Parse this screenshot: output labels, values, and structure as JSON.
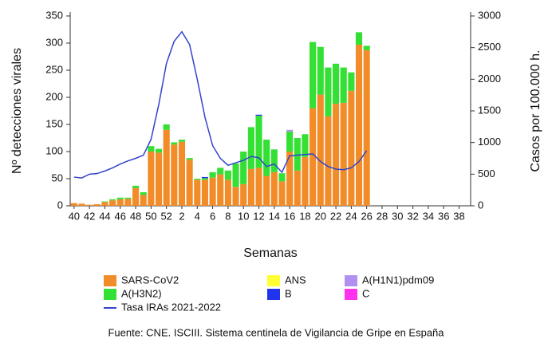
{
  "chart_data": {
    "type": "bar",
    "stacked": true,
    "y_label": "Nº detecciones virales",
    "y2_label": "Casos por 100.000 h.",
    "x_label": "Semanas",
    "source": "Fuente: CNE. ISCIII. Sistema centinela de Vigilancia de Gripe en España",
    "categories": [
      "40",
      null,
      "42",
      null,
      "44",
      null,
      "46",
      null,
      "48",
      null,
      "50",
      null,
      "52",
      null,
      "2",
      null,
      "4",
      null,
      "6",
      null,
      "8",
      null,
      "10",
      null,
      "12",
      null,
      "14",
      null,
      "16",
      null,
      "18",
      null,
      "20",
      null,
      "22",
      null,
      "24",
      null,
      "26",
      null,
      "28",
      null,
      "30",
      null,
      "32",
      null,
      "34",
      null,
      "36",
      null,
      "38",
      null
    ],
    "ylim": [
      0,
      350
    ],
    "yticks": [
      0,
      50,
      100,
      150,
      200,
      250,
      300,
      350
    ],
    "y2lim": [
      0,
      3000
    ],
    "y2ticks": [
      0,
      500,
      1000,
      1500,
      2000,
      2500,
      3000
    ],
    "series": [
      {
        "name": "SARS-CoV2",
        "color": "#f28c28",
        "values": [
          5,
          4,
          2,
          3,
          7,
          10,
          12,
          13,
          33,
          20,
          100,
          98,
          140,
          113,
          118,
          85,
          48,
          48,
          52,
          58,
          48,
          35,
          40,
          68,
          70,
          55,
          62,
          45,
          100,
          65,
          90,
          180,
          205,
          165,
          188,
          190,
          212,
          297,
          287,
          null,
          null,
          null,
          null,
          null,
          null,
          null,
          null,
          null,
          null,
          null,
          null,
          null
        ]
      },
      {
        "name": "A(H3N2)",
        "color": "#33e033",
        "values": [
          0,
          0,
          0,
          0,
          1,
          2,
          3,
          2,
          4,
          5,
          10,
          7,
          10,
          4,
          4,
          3,
          2,
          3,
          10,
          12,
          17,
          43,
          60,
          77,
          96,
          67,
          42,
          15,
          37,
          60,
          42,
          122,
          88,
          90,
          74,
          65,
          34,
          23,
          8,
          null,
          null,
          null,
          null,
          null,
          null,
          null,
          null,
          null,
          null,
          null,
          null,
          null
        ]
      },
      {
        "name": "ANS",
        "color": "#ffff33",
        "values": [
          0,
          0,
          0,
          0,
          0,
          0,
          0,
          0,
          0,
          0,
          0,
          0,
          0,
          0,
          0,
          0,
          0,
          0,
          0,
          0,
          0,
          0,
          0,
          0,
          0,
          0,
          0,
          0,
          0,
          0,
          0,
          0,
          0,
          0,
          0,
          0,
          0,
          0,
          0,
          null,
          null,
          null,
          null,
          null,
          null,
          null,
          null,
          null,
          null,
          null,
          null,
          null
        ]
      },
      {
        "name": "B",
        "color": "#2233ee",
        "values": [
          0,
          0,
          0,
          0,
          0,
          0,
          0,
          0,
          0,
          0,
          0,
          0,
          0,
          0,
          0,
          0,
          0,
          2,
          0,
          0,
          0,
          0,
          0,
          0,
          2,
          0,
          0,
          0,
          0,
          0,
          0,
          0,
          0,
          0,
          0,
          0,
          0,
          0,
          0,
          null,
          null,
          null,
          null,
          null,
          null,
          null,
          null,
          null,
          null,
          null,
          null,
          null
        ]
      },
      {
        "name": "A(H1N1)pdm09",
        "color": "#b090f0",
        "values": [
          0,
          0,
          0,
          0,
          0,
          0,
          0,
          0,
          0,
          0,
          0,
          0,
          0,
          0,
          0,
          0,
          0,
          0,
          0,
          0,
          0,
          0,
          0,
          0,
          0,
          0,
          0,
          0,
          3,
          0,
          0,
          0,
          0,
          0,
          0,
          0,
          0,
          0,
          0,
          null,
          null,
          null,
          null,
          null,
          null,
          null,
          null,
          null,
          null,
          null,
          null,
          null
        ]
      },
      {
        "name": "C",
        "color": "#ff33ee",
        "values": [
          0,
          0,
          0,
          0,
          0,
          0,
          0,
          0,
          0,
          0,
          0,
          0,
          0,
          0,
          0,
          0,
          0,
          0,
          0,
          0,
          0,
          0,
          0,
          0,
          0,
          0,
          0,
          0,
          0,
          0,
          0,
          0,
          0,
          0,
          0,
          0,
          0,
          0,
          0,
          null,
          null,
          null,
          null,
          null,
          null,
          null,
          null,
          null,
          null,
          null,
          null,
          null
        ]
      },
      {
        "name": "Tasa IRAs 2021-2022",
        "color": "#3344cc",
        "type": "line",
        "axis": "y2",
        "values": [
          453,
          440,
          500,
          510,
          550,
          600,
          660,
          710,
          750,
          800,
          1050,
          1600,
          2250,
          2600,
          2750,
          2550,
          2000,
          1400,
          950,
          750,
          640,
          680,
          720,
          780,
          760,
          620,
          660,
          530,
          790,
          800,
          810,
          820,
          700,
          620,
          580,
          570,
          600,
          700,
          870,
          null,
          null,
          null,
          null,
          null,
          null,
          null,
          null,
          null,
          null,
          null,
          null,
          null
        ]
      }
    ]
  }
}
